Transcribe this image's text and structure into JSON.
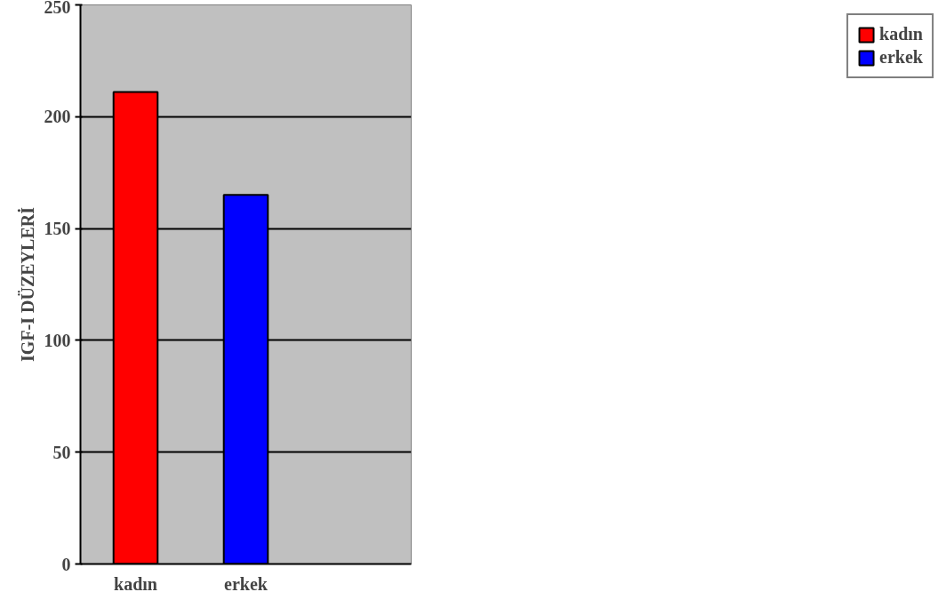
{
  "chart_data": {
    "type": "bar",
    "ylabel": "IGF-I DÜZEYLERİ",
    "categories": [
      "kadın",
      "erkek",
      null
    ],
    "series": [
      {
        "name": "kadın",
        "color": "#ff0000",
        "values": [
          211,
          null,
          null
        ]
      },
      {
        "name": "erkek",
        "color": "#0000ff",
        "values": [
          null,
          165,
          null
        ]
      }
    ],
    "ylim": [
      0,
      250
    ],
    "yticks": [
      0,
      50,
      100,
      150,
      200,
      250
    ],
    "grid": "y",
    "legend": "right"
  }
}
